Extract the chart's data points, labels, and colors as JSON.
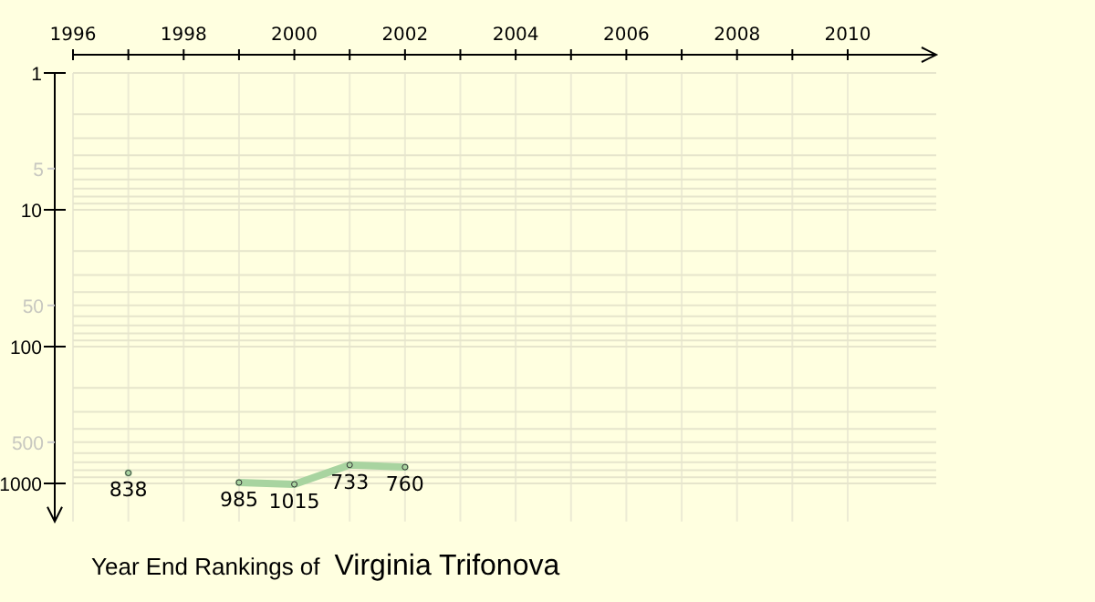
{
  "chart_data": {
    "type": "line",
    "title": "Year End Rankings of",
    "subtitle": "Virginia Trifonova",
    "x": [
      1997,
      1998,
      1999,
      2000,
      2001,
      2002
    ],
    "series": [
      {
        "color": "#a8d4a0",
        "values": [
          838,
          null,
          985,
          1015,
          733,
          760
        ]
      }
    ],
    "xlim": [
      1996,
      2011.6
    ],
    "xticks": [
      1996,
      {
        "value": 1997,
        "label": null
      },
      1998,
      {
        "value": 1999,
        "label": null
      },
      2000,
      {
        "value": 2001,
        "label": null
      },
      2002,
      {
        "value": 2003,
        "label": null
      },
      2004,
      {
        "value": 2005,
        "label": null
      },
      2006,
      {
        "value": 2007,
        "label": null
      },
      2008,
      {
        "value": 2009,
        "label": null
      },
      2010
    ],
    "ylim": [
      1900,
      1
    ],
    "yticks": [
      1,
      5,
      10,
      50,
      100,
      500,
      1000
    ],
    "log": "y",
    "grid": true,
    "marker": "circle",
    "line_style": "solid",
    "data_labels": true
  }
}
